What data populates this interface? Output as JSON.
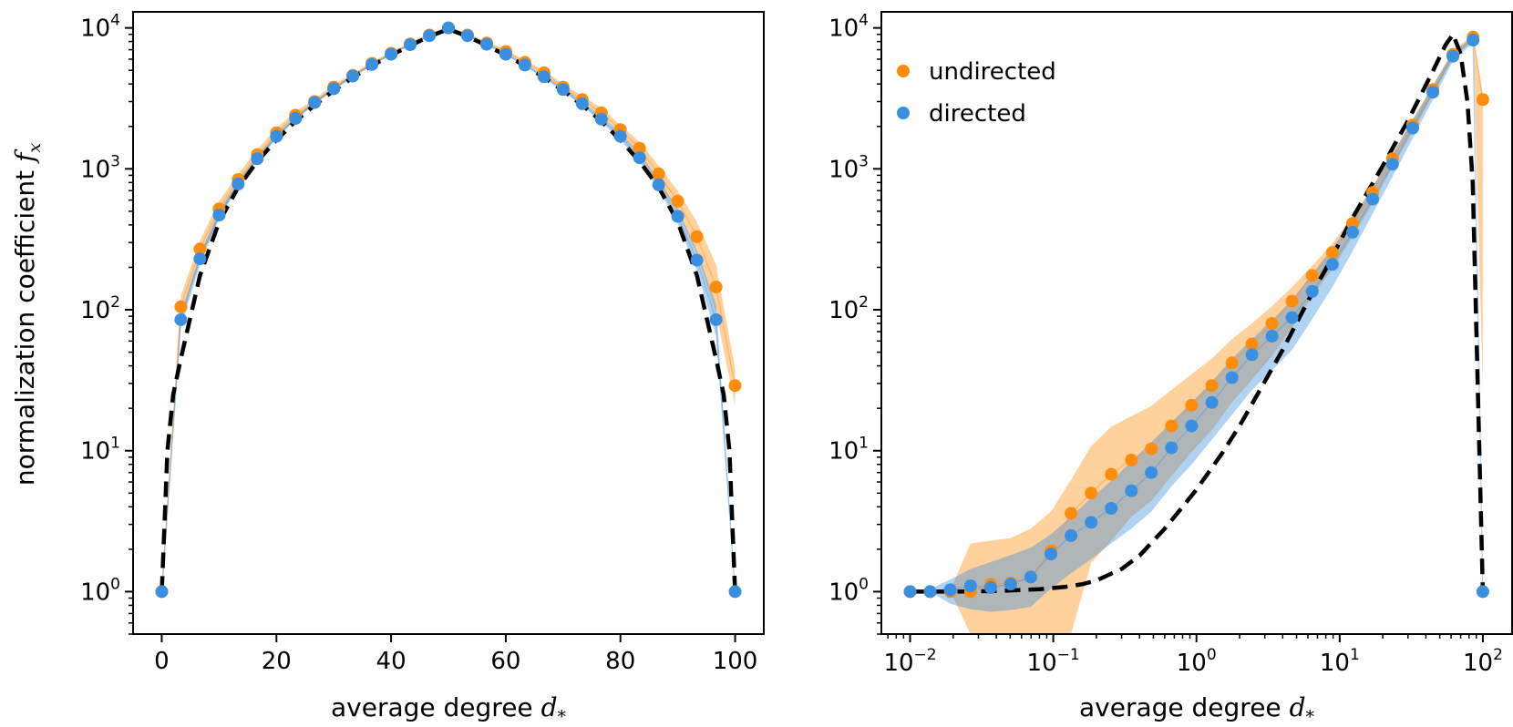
{
  "chart_data": [
    {
      "type": "scatter",
      "xscale": "linear",
      "yscale": "log",
      "xlim": [
        -5,
        105
      ],
      "ylim": [
        0.5,
        13000
      ],
      "xticks": [
        0,
        20,
        40,
        60,
        80,
        100
      ],
      "xtick_labels": [
        "0",
        "20",
        "40",
        "60",
        "80",
        "100"
      ],
      "yticks": [
        1,
        10,
        100,
        1000,
        10000
      ],
      "ytick_labels": [
        {
          "base": "10",
          "exp": "0"
        },
        {
          "base": "10",
          "exp": "1"
        },
        {
          "base": "10",
          "exp": "2"
        },
        {
          "base": "10",
          "exp": "3"
        },
        {
          "base": "10",
          "exp": "4"
        }
      ],
      "xlabel": {
        "text": "average degree ",
        "math": "d",
        "sub": "*"
      },
      "ylabel": {
        "text": "normalization coefficient ",
        "math": "f",
        "sub": "x"
      },
      "series": [
        {
          "name": "undirected",
          "color": "#ff8c0a",
          "x": [
            0,
            3.33,
            6.67,
            10,
            13.33,
            16.67,
            20,
            23.33,
            26.67,
            30,
            33.33,
            36.67,
            40,
            43.33,
            46.67,
            50,
            53.33,
            56.67,
            60,
            63.33,
            66.67,
            70,
            73.33,
            76.67,
            80,
            83.33,
            86.67,
            90,
            93.33,
            96.67,
            100
          ],
          "y": [
            1,
            105,
            270,
            520,
            840,
            1260,
            1800,
            2400,
            3000,
            3800,
            4600,
            5600,
            6600,
            7700,
            8900,
            10000,
            8900,
            7800,
            6800,
            5700,
            4800,
            3800,
            3100,
            2500,
            1900,
            1400,
            920,
            590,
            330,
            145,
            29
          ],
          "band_lower": [
            1,
            85,
            230,
            450,
            760,
            1150,
            1650,
            2250,
            2850,
            3650,
            4450,
            5450,
            6450,
            7550,
            8700,
            9800,
            8700,
            7600,
            6600,
            5500,
            4600,
            3650,
            2950,
            2350,
            1750,
            1250,
            800,
            490,
            250,
            95,
            21
          ],
          "band_upper": [
            1,
            125,
            310,
            590,
            920,
            1370,
            1950,
            2550,
            3150,
            3950,
            4750,
            5750,
            6750,
            7850,
            9100,
            10200,
            9100,
            8000,
            7000,
            5900,
            5000,
            4000,
            3300,
            2700,
            2050,
            1550,
            1050,
            700,
            420,
            210,
            38
          ]
        },
        {
          "name": "directed",
          "color": "#3a8fe0",
          "x": [
            0,
            3.33,
            6.67,
            10,
            13.33,
            16.67,
            20,
            23.33,
            26.67,
            30,
            33.33,
            36.67,
            40,
            43.33,
            46.67,
            50,
            53.33,
            56.67,
            60,
            63.33,
            66.67,
            70,
            73.33,
            76.67,
            80,
            83.33,
            86.67,
            90,
            93.33,
            96.67,
            100
          ],
          "y": [
            1,
            85,
            230,
            470,
            780,
            1180,
            1700,
            2280,
            2950,
            3700,
            4550,
            5500,
            6500,
            7600,
            8800,
            10000,
            8800,
            7650,
            6500,
            5450,
            4500,
            3650,
            2900,
            2250,
            1700,
            1200,
            770,
            460,
            225,
            85,
            1
          ],
          "band_lower": [
            1,
            75,
            210,
            440,
            740,
            1130,
            1640,
            2220,
            2880,
            3620,
            4470,
            5420,
            6420,
            7520,
            8700,
            9900,
            8700,
            7550,
            6400,
            5350,
            4400,
            3550,
            2800,
            2150,
            1600,
            1120,
            710,
            410,
            190,
            65,
            1
          ],
          "band_upper": [
            1,
            95,
            250,
            500,
            820,
            1230,
            1760,
            2340,
            3020,
            3780,
            4630,
            5580,
            6580,
            7680,
            8900,
            10100,
            8900,
            7750,
            6600,
            5550,
            4600,
            3750,
            3000,
            2350,
            1800,
            1290,
            840,
            520,
            265,
            110,
            1
          ]
        },
        {
          "name": "",
          "kind": "line",
          "style": "dashed",
          "color": "#000000",
          "x": [
            0,
            1,
            2,
            3.33,
            6.67,
            10,
            13.33,
            16.67,
            20,
            23.33,
            26.67,
            30,
            33.33,
            36.67,
            40,
            43.33,
            46.67,
            50,
            53.33,
            56.67,
            60,
            63.33,
            66.67,
            70,
            73.33,
            76.67,
            80,
            83.33,
            86.67,
            90,
            93.33,
            96.67,
            98,
            99,
            100
          ],
          "y": [
            1,
            10,
            25,
            45,
            175,
            420,
            740,
            1130,
            1600,
            2180,
            2830,
            3600,
            4450,
            5400,
            6400,
            7500,
            8700,
            9800,
            8700,
            7500,
            6400,
            5400,
            4450,
            3600,
            2830,
            2180,
            1600,
            1130,
            740,
            420,
            175,
            45,
            25,
            10,
            1
          ]
        }
      ]
    },
    {
      "type": "scatter",
      "xscale": "log",
      "yscale": "log",
      "xlim": [
        0.0063,
        160
      ],
      "ylim": [
        0.5,
        13000
      ],
      "xticks": [
        0.01,
        0.1,
        1,
        10,
        100
      ],
      "xtick_labels": [
        {
          "base": "10",
          "exp": "−2"
        },
        {
          "base": "10",
          "exp": "−1"
        },
        {
          "base": "10",
          "exp": "0"
        },
        {
          "base": "10",
          "exp": "1"
        },
        {
          "base": "10",
          "exp": "2"
        }
      ],
      "yticks": [
        1,
        10,
        100,
        1000,
        10000
      ],
      "ytick_labels": [
        {
          "base": "10",
          "exp": "0"
        },
        {
          "base": "10",
          "exp": "1"
        },
        {
          "base": "10",
          "exp": "2"
        },
        {
          "base": "10",
          "exp": "3"
        },
        {
          "base": "10",
          "exp": "4"
        }
      ],
      "xlabel": {
        "text": "average degree ",
        "math": "d",
        "sub": "*"
      },
      "legend": {
        "location": "upper left",
        "entries": [
          "undirected",
          "directed"
        ]
      },
      "series": [
        {
          "name": "undirected",
          "color": "#ff8c0a",
          "x": [
            0.01,
            0.0138,
            0.0191,
            0.0264,
            0.0365,
            0.0504,
            0.0696,
            0.0962,
            0.133,
            0.184,
            0.254,
            0.351,
            0.484,
            0.669,
            0.925,
            1.28,
            1.77,
            2.44,
            3.37,
            4.65,
            6.43,
            8.89,
            12.3,
            17.0,
            23.4,
            32.4,
            44.8,
            61.8,
            85.4,
            100
          ],
          "y": [
            1,
            1,
            1,
            1,
            1.13,
            1.15,
            1.27,
            1.95,
            3.6,
            5.0,
            6.8,
            8.6,
            10.3,
            15,
            21,
            29,
            42,
            57,
            80,
            115,
            175,
            255,
            410,
            680,
            1180,
            2050,
            3650,
            6500,
            8600,
            3100
          ],
          "band_lower": [
            1,
            1,
            1,
            0.4,
            0.4,
            0.4,
            0.45,
            0.5,
            0.5,
            1.6,
            2.3,
            3.4,
            4.4,
            6.6,
            9.8,
            14,
            22,
            32,
            47,
            75,
            125,
            195,
            330,
            570,
            1030,
            1840,
            3350,
            6100,
            8300,
            28
          ],
          "band_upper": [
            1,
            1,
            1.02,
            2.2,
            2.3,
            2.4,
            2.8,
            3.7,
            6.2,
            10.8,
            14.8,
            17.6,
            20.8,
            27,
            35,
            45,
            62,
            80,
            106,
            145,
            205,
            295,
            460,
            750,
            1280,
            2200,
            3900,
            6850,
            9000,
            3400
          ]
        },
        {
          "name": "directed",
          "color": "#3a8fe0",
          "x": [
            0.01,
            0.0138,
            0.0191,
            0.0264,
            0.0365,
            0.0504,
            0.0696,
            0.0962,
            0.133,
            0.184,
            0.254,
            0.351,
            0.484,
            0.669,
            0.925,
            1.28,
            1.77,
            2.44,
            3.37,
            4.65,
            6.43,
            8.89,
            12.3,
            17.0,
            23.4,
            32.4,
            44.8,
            61.8,
            85.4,
            100
          ],
          "y": [
            1,
            1,
            1.03,
            1.1,
            1.07,
            1.13,
            1.27,
            1.85,
            2.5,
            3.1,
            3.9,
            5.2,
            7,
            10.5,
            15,
            22,
            33,
            48,
            65,
            88,
            135,
            210,
            355,
            610,
            1080,
            1950,
            3500,
            6300,
            8200,
            1
          ],
          "band_lower": [
            1,
            1,
            0.82,
            0.75,
            0.72,
            0.74,
            0.78,
            1.05,
            1.35,
            1.7,
            2.2,
            2.8,
            3.7,
            5.6,
            8,
            12,
            18,
            27,
            37,
            52,
            86,
            145,
            260,
            480,
            880,
            1650,
            3100,
            5800,
            7900,
            1
          ],
          "band_upper": [
            1,
            1.05,
            1.22,
            1.45,
            1.62,
            1.82,
            2.05,
            2.55,
            3.4,
            4.6,
            6.1,
            8.4,
            11.5,
            16,
            22,
            31,
            45,
            62,
            84,
            118,
            180,
            275,
            440,
            750,
            1280,
            2250,
            3900,
            6800,
            8600,
            1
          ]
        },
        {
          "name": "",
          "kind": "line",
          "style": "dashed",
          "color": "#000000",
          "x": [
            0.01,
            0.02,
            0.04,
            0.08,
            0.12,
            0.16,
            0.2,
            0.3,
            0.4,
            0.6,
            0.8,
            1.0,
            1.5,
            2,
            3,
            4,
            6,
            8,
            12,
            20,
            30,
            45,
            55,
            62,
            70,
            78,
            85,
            100
          ],
          "y": [
            1,
            1,
            1.01,
            1.04,
            1.08,
            1.13,
            1.2,
            1.45,
            1.8,
            2.8,
            4.0,
            5.3,
            9.5,
            15,
            31,
            52,
            115,
            195,
            430,
            1050,
            2200,
            5000,
            7600,
            9000,
            6500,
            3000,
            800,
            1
          ]
        }
      ]
    }
  ]
}
